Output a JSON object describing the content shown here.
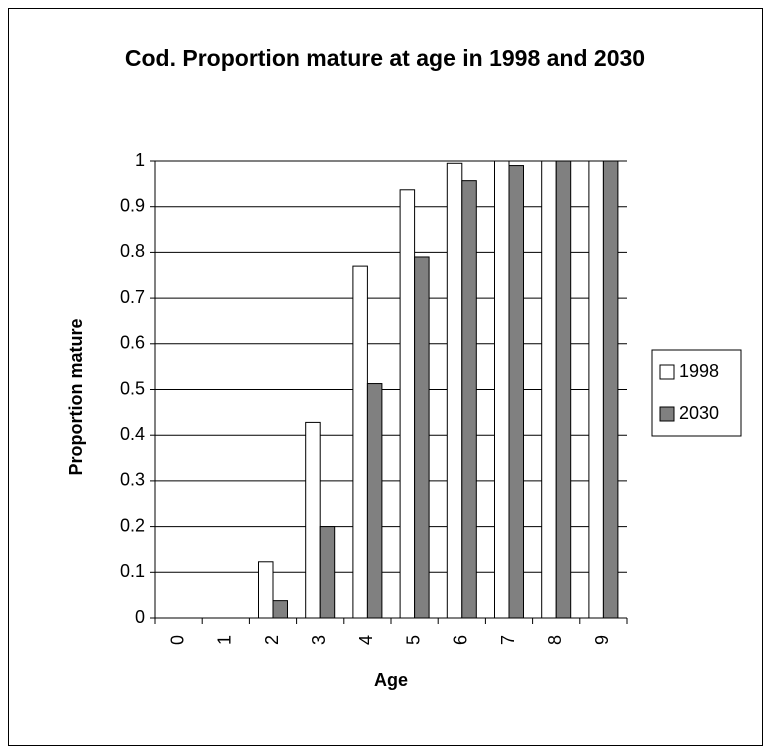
{
  "chart_data": {
    "type": "bar",
    "title": "Cod. Proportion mature at age in 1998 and 2030",
    "x_label": "Age",
    "y_label": "Proportion mature",
    "categories": [
      "0",
      "1",
      "2",
      "3",
      "4",
      "5",
      "6",
      "7",
      "8",
      "9"
    ],
    "series": [
      {
        "name": "1998",
        "color": "#ffffff",
        "values": [
          0,
          0,
          0.123,
          0.428,
          0.77,
          0.937,
          0.995,
          1,
          1,
          1
        ]
      },
      {
        "name": "2030",
        "color": "#808080",
        "values": [
          0,
          0,
          0.038,
          0.2,
          0.513,
          0.79,
          0.957,
          0.99,
          1,
          1
        ]
      }
    ],
    "ylim": [
      0,
      1
    ],
    "yticks": [
      0,
      0.1,
      0.2,
      0.3,
      0.4,
      0.5,
      0.6,
      0.7,
      0.8,
      0.9,
      1
    ],
    "grid": true,
    "legend": "right"
  }
}
